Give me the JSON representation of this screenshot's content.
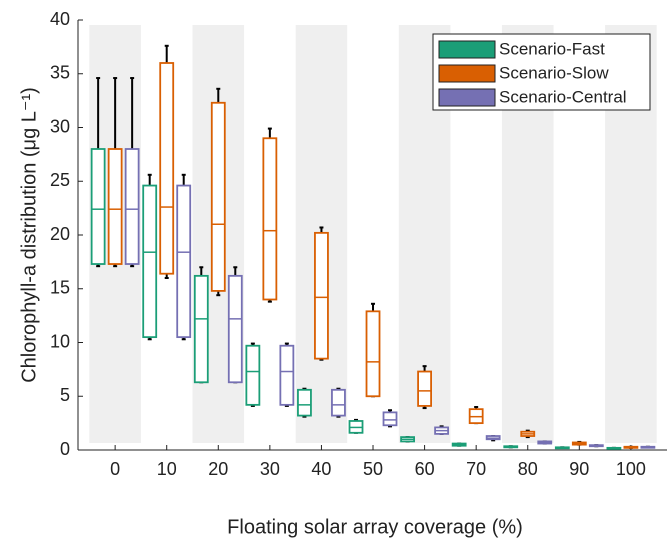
{
  "chart_data": {
    "type": "box",
    "xlabel": "Floating solar array coverage (%)",
    "ylabel": "Chlorophyll-a distribution (μg L⁻¹)",
    "x": [
      0,
      10,
      20,
      30,
      40,
      50,
      60,
      70,
      80,
      90,
      100
    ],
    "xlim": [
      -7.2,
      107
    ],
    "xticks": [
      0,
      10,
      20,
      30,
      40,
      50,
      60,
      70,
      80,
      90,
      100
    ],
    "ylim": [
      0,
      40
    ],
    "yticks": [
      0,
      5,
      10,
      15,
      20,
      25,
      30,
      35,
      40
    ],
    "legend": "top-right",
    "series": [
      {
        "name": "Scenario-Fast",
        "color": "#1b9e77",
        "min": [
          17.1,
          10.3,
          6.3,
          4.1,
          3.1,
          1.6,
          0.8,
          0.4,
          0.25,
          0.2,
          0.15
        ],
        "q1": [
          17.3,
          10.5,
          6.3,
          4.2,
          3.2,
          1.6,
          0.8,
          0.4,
          0.25,
          0.2,
          0.15
        ],
        "median": [
          22.4,
          18.4,
          12.2,
          7.3,
          4.2,
          2.1,
          1.0,
          0.5,
          0.3,
          0.22,
          0.18
        ],
        "q3": [
          28,
          24.6,
          16.2,
          9.7,
          5.6,
          2.7,
          1.2,
          0.6,
          0.35,
          0.25,
          0.2
        ],
        "max": [
          34.6,
          25.6,
          17,
          9.9,
          5.7,
          2.8,
          1.2,
          0.6,
          0.35,
          0.25,
          0.2
        ]
      },
      {
        "name": "Scenario-Slow",
        "color": "#d95f02",
        "min": [
          17.1,
          16,
          14.4,
          13.8,
          8.4,
          5,
          3.9,
          2.5,
          1.2,
          0.5,
          0.2
        ],
        "q1": [
          17.3,
          16.4,
          14.8,
          14,
          8.5,
          5,
          4.1,
          2.5,
          1.3,
          0.5,
          0.2
        ],
        "median": [
          22.4,
          22.6,
          21,
          20.4,
          14.2,
          8.2,
          5.5,
          3.1,
          1.5,
          0.6,
          0.25
        ],
        "q3": [
          28,
          36,
          32.3,
          29,
          20.2,
          12.9,
          7.3,
          3.8,
          1.7,
          0.7,
          0.3
        ],
        "max": [
          34.6,
          37.6,
          33.6,
          29.9,
          20.7,
          13.6,
          7.8,
          4,
          1.8,
          0.75,
          0.3
        ]
      },
      {
        "name": "Scenario-Central",
        "color": "#7570b3",
        "min": [
          17.1,
          10.3,
          6.3,
          4.1,
          3.1,
          2.2,
          1.5,
          0.9,
          0.6,
          0.35,
          0.25
        ],
        "q1": [
          17.3,
          10.5,
          6.3,
          4.2,
          3.2,
          2.3,
          1.5,
          1.0,
          0.6,
          0.35,
          0.25
        ],
        "median": [
          22.4,
          18.4,
          12.2,
          7.3,
          4.2,
          2.8,
          1.8,
          1.1,
          0.7,
          0.4,
          0.28
        ],
        "q3": [
          28,
          24.6,
          16.2,
          9.7,
          5.6,
          3.5,
          2.1,
          1.3,
          0.8,
          0.45,
          0.3
        ],
        "max": [
          34.6,
          25.6,
          17,
          9.9,
          5.7,
          3.7,
          2.2,
          1.3,
          0.8,
          0.45,
          0.3
        ]
      }
    ]
  }
}
